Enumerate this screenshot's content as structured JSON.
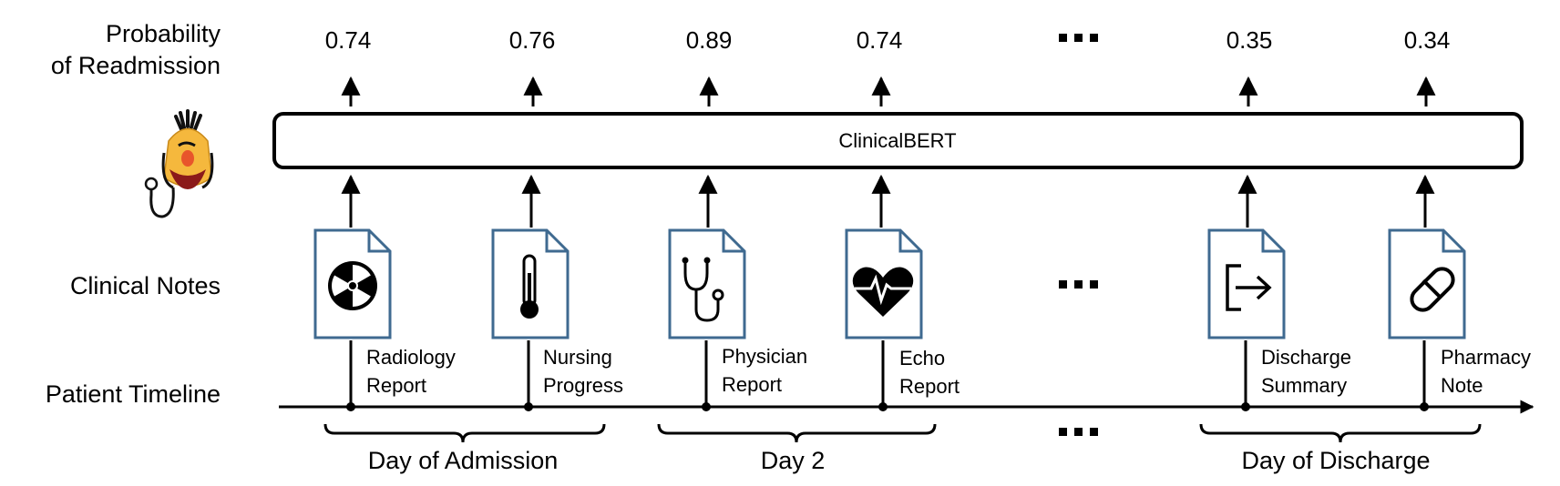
{
  "row_labels": {
    "probability_line1": "Probability",
    "probability_line2": "of Readmission",
    "clinical_notes": "Clinical Notes",
    "patient_timeline": "Patient Timeline"
  },
  "model": {
    "name": "ClinicalBERT",
    "mascot_icon": "bert-doctor-mascot-icon"
  },
  "probabilities": [
    "0.74",
    "0.76",
    "0.89",
    "0.74",
    "0.35",
    "0.34"
  ],
  "notes": [
    {
      "line1": "Radiology",
      "line2": "Report",
      "icon": "radiation-icon"
    },
    {
      "line1": "Nursing",
      "line2": "Progress",
      "icon": "thermometer-icon"
    },
    {
      "line1": "Physician",
      "line2": "Report",
      "icon": "stethoscope-icon"
    },
    {
      "line1": "Echo",
      "line2": "Report",
      "icon": "heart-pulse-icon"
    },
    {
      "line1": "Discharge",
      "line2": "Summary",
      "icon": "exit-arrow-icon"
    },
    {
      "line1": "Pharmacy",
      "line2": "Note",
      "icon": "pill-icon"
    }
  ],
  "ellipsis": "ellipsis-icon",
  "days": [
    "Day of Admission",
    "Day 2",
    "Day of Discharge"
  ],
  "colors": {
    "document_border": "#3f6a90",
    "mascot_face": "#f5b83d",
    "mascot_nose": "#e8552b"
  }
}
